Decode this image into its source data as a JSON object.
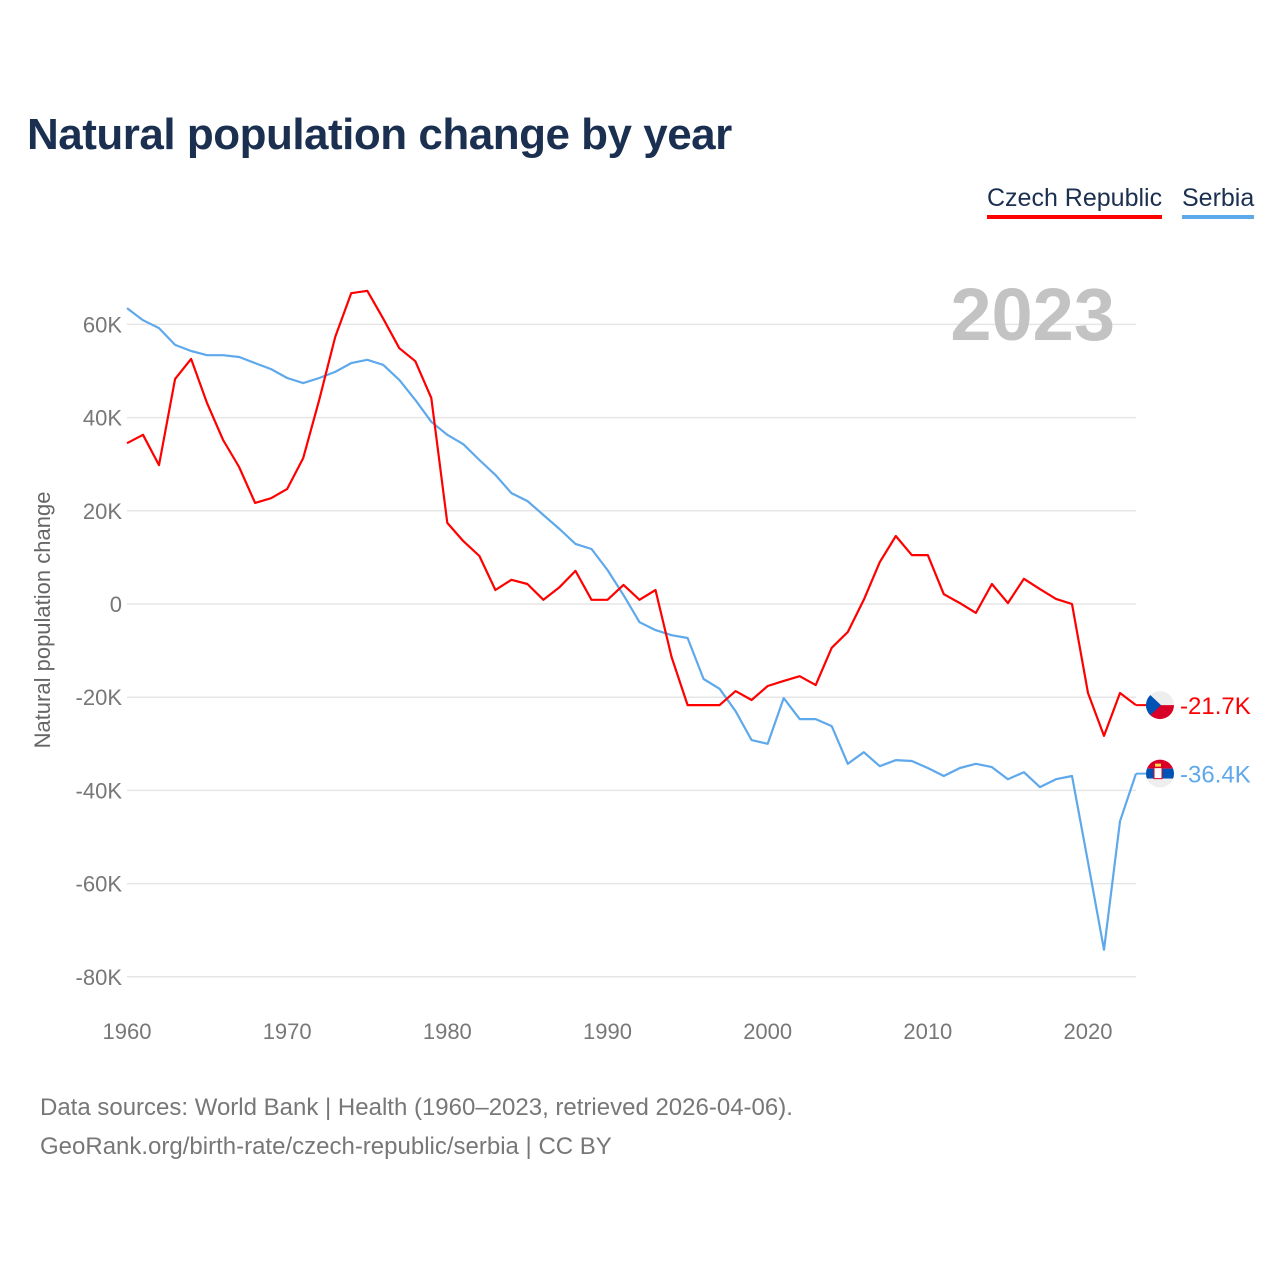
{
  "chart_data": {
    "type": "line",
    "title": "Natural population change by year",
    "xlabel": "",
    "ylabel": "Natural population change",
    "year_label": "2023",
    "xlim": [
      1960,
      2023
    ],
    "ylim": [
      -80000,
      70000
    ],
    "x_ticks": [
      1960,
      1970,
      1980,
      1990,
      2000,
      2010,
      2020
    ],
    "x_tick_labels": [
      "1960",
      "1970",
      "1980",
      "1990",
      "2000",
      "2010",
      "2020"
    ],
    "y_ticks": [
      60000,
      40000,
      20000,
      0,
      -20000,
      -40000,
      -60000,
      -80000
    ],
    "y_tick_labels": [
      "60K",
      "40K",
      "20K",
      "0",
      "-20K",
      "-40K",
      "-60K",
      "-80K"
    ],
    "grid": true,
    "legend_position": "top-right",
    "x": [
      1960,
      1961,
      1962,
      1963,
      1964,
      1965,
      1966,
      1967,
      1968,
      1969,
      1970,
      1971,
      1972,
      1973,
      1974,
      1975,
      1976,
      1977,
      1978,
      1979,
      1980,
      1981,
      1982,
      1983,
      1984,
      1985,
      1986,
      1987,
      1988,
      1989,
      1990,
      1991,
      1992,
      1993,
      1994,
      1995,
      1996,
      1997,
      1998,
      1999,
      2000,
      2001,
      2002,
      2003,
      2004,
      2005,
      2006,
      2007,
      2008,
      2009,
      2010,
      2011,
      2012,
      2013,
      2014,
      2015,
      2016,
      2017,
      2018,
      2019,
      2020,
      2021,
      2022,
      2023
    ],
    "series": [
      {
        "name": "Czech Republic",
        "color": "#ff0000",
        "end_label": "-21.7K",
        "flag": "czech-flag",
        "values": [
          34500,
          36300,
          29800,
          48300,
          52600,
          43100,
          35200,
          29400,
          21700,
          22700,
          24700,
          31300,
          43800,
          57300,
          66700,
          67200,
          61200,
          54900,
          52100,
          44200,
          17400,
          13500,
          10300,
          3000,
          5200,
          4300,
          900,
          3600,
          7100,
          900,
          900,
          4100,
          900,
          3000,
          -11400,
          -21700,
          -21700,
          -21700,
          -18700,
          -20600,
          -17600,
          -16500,
          -15500,
          -17400,
          -9400,
          -6000,
          900,
          9000,
          14600,
          10500,
          10500,
          2100,
          200,
          -1900,
          4300,
          200,
          5400,
          3200,
          1100,
          0,
          -19100,
          -28300,
          -19100,
          -21700
        ]
      },
      {
        "name": "Serbia",
        "color": "#5ea8ec",
        "end_label": "-36.4K",
        "flag": "serbia-flag",
        "values": [
          63500,
          60900,
          59200,
          55600,
          54300,
          53400,
          53400,
          53000,
          51700,
          50400,
          48500,
          47400,
          48500,
          49800,
          51700,
          52400,
          51300,
          48100,
          43800,
          39100,
          36300,
          34300,
          30900,
          27700,
          23800,
          22100,
          19100,
          16100,
          12900,
          11800,
          7300,
          1900,
          -3900,
          -5600,
          -6700,
          -7300,
          -16100,
          -18200,
          -23000,
          -29200,
          -30000,
          -20200,
          -24700,
          -24700,
          -26200,
          -34300,
          -31800,
          -34800,
          -33500,
          -33700,
          -35200,
          -36900,
          -35200,
          -34300,
          -35000,
          -37600,
          -36100,
          -39300,
          -37600,
          -36900,
          -55400,
          -74200,
          -46600,
          -36400
        ]
      }
    ]
  },
  "footer": {
    "line1": "Data sources: World Bank | Health (1960–2023, retrieved 2026-04-06).",
    "line2": "GeoRank.org/birth-rate/czech-republic/serbia | CC BY"
  }
}
